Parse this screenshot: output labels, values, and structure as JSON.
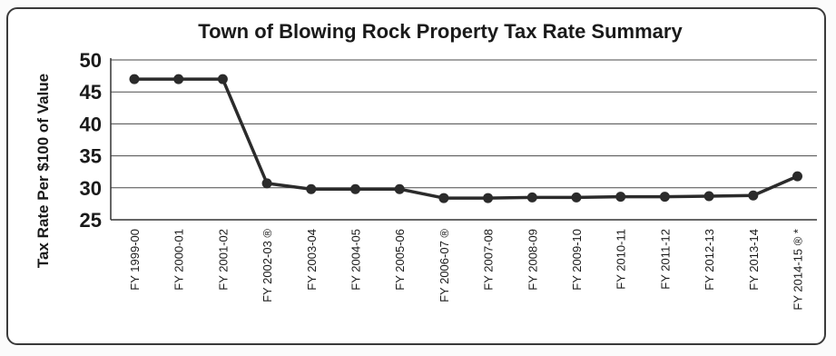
{
  "chart_data": {
    "type": "line",
    "title": "Town of Blowing Rock Property Tax Rate Summary",
    "xlabel": "",
    "ylabel": "Tax Rate Per $100 of Value",
    "ylim": [
      25,
      50
    ],
    "yticks": [
      "50",
      "45",
      "40",
      "35",
      "30",
      "25"
    ],
    "grid": true,
    "categories": [
      "FY 1999-00",
      "FY 2000-01",
      "FY 2001-02",
      "FY 2002-03 ®",
      "FY 2003-04",
      "FY 2004-05",
      "FY 2005-06",
      "FY 2006-07 ®",
      "FY 2007-08",
      "FY 2008-09",
      "FY 2009-10",
      "FY 2010-11",
      "FY 2011-12",
      "FY 2012-13",
      "FY 2013-14",
      "FY 2014-15 ® *"
    ],
    "series": [
      {
        "values": [
          47,
          47,
          47,
          30.7,
          29.8,
          29.8,
          29.8,
          28.4,
          28.4,
          28.5,
          28.5,
          28.6,
          28.6,
          28.7,
          28.8,
          31.8
        ],
        "color": "#2b2b2b"
      }
    ]
  }
}
